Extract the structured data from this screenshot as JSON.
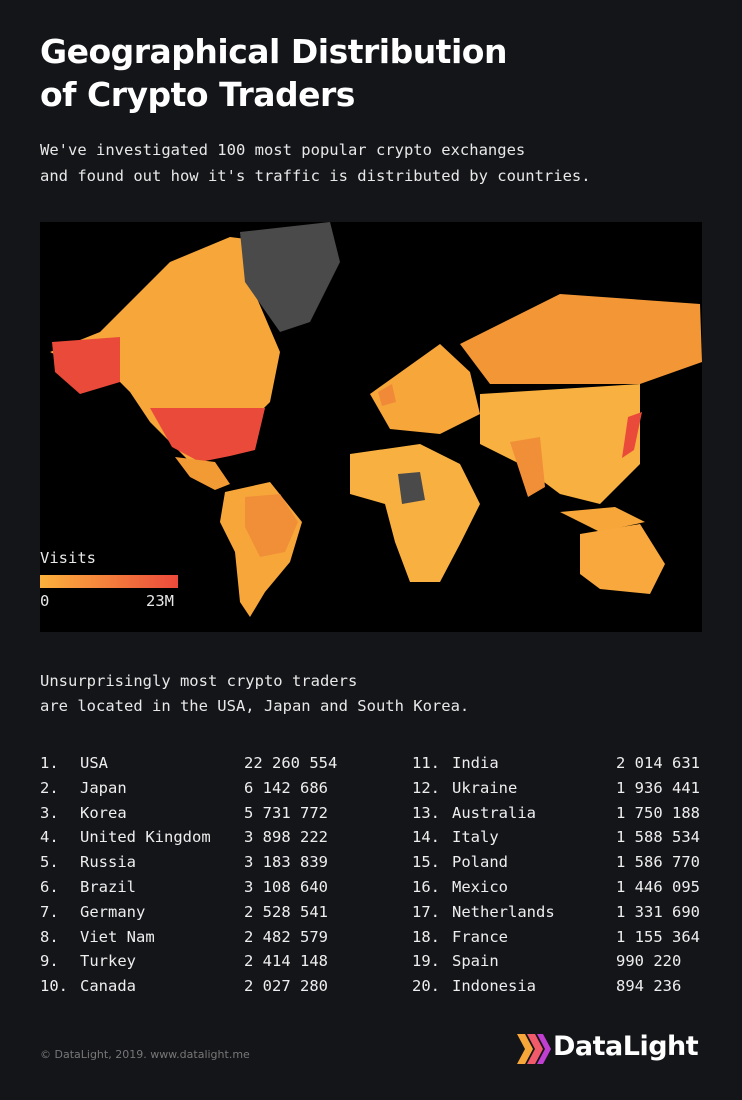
{
  "header": {
    "title": [
      "Geographical Distribution",
      "of Crypto Traders"
    ],
    "subtitle": [
      "We've investigated 100 most popular crypto exchanges",
      "and found out how it's traffic is distributed by countries."
    ]
  },
  "map": {
    "legend": {
      "title": "Visits",
      "min_label": "0",
      "max_label": "23M"
    }
  },
  "note": [
    "Unsurprisingly most crypto traders",
    "are located in the USA, Japan and South Korea."
  ],
  "ranking": {
    "rows": [
      [
        "1.",
        "USA",
        "22 260 554"
      ],
      [
        "2.",
        "Japan",
        "6 142 686"
      ],
      [
        "3.",
        "Korea",
        "5 731 772"
      ],
      [
        "4.",
        "United Kingdom",
        "3 898 222"
      ],
      [
        "5.",
        "Russia",
        "3 183 839"
      ],
      [
        "6.",
        "Brazil",
        "3 108 640"
      ],
      [
        "7.",
        "Germany",
        "2 528 541"
      ],
      [
        "8.",
        "Viet Nam",
        "2 482 579"
      ],
      [
        "9.",
        "Turkey",
        "2 414 148"
      ],
      [
        "10.",
        "Canada",
        "2 027 280"
      ],
      [
        "11.",
        "India",
        "2 014 631"
      ],
      [
        "12.",
        "Ukraine",
        "1 936 441"
      ],
      [
        "13.",
        "Australia",
        "1 750 188"
      ],
      [
        "14.",
        "Italy",
        "1 588 534"
      ],
      [
        "15.",
        "Poland",
        "1 586 770"
      ],
      [
        "16.",
        "Mexico",
        "1 446 095"
      ],
      [
        "17.",
        "Netherlands",
        "1 331 690"
      ],
      [
        "18.",
        "France",
        "1 155 364"
      ],
      [
        "19.",
        "Spain",
        "990 220"
      ],
      [
        "20.",
        "Indonesia",
        "894 236"
      ]
    ]
  },
  "footer": {
    "credit": "© DataLight, 2019. www.datalight.me",
    "logo": "DataLight"
  }
}
